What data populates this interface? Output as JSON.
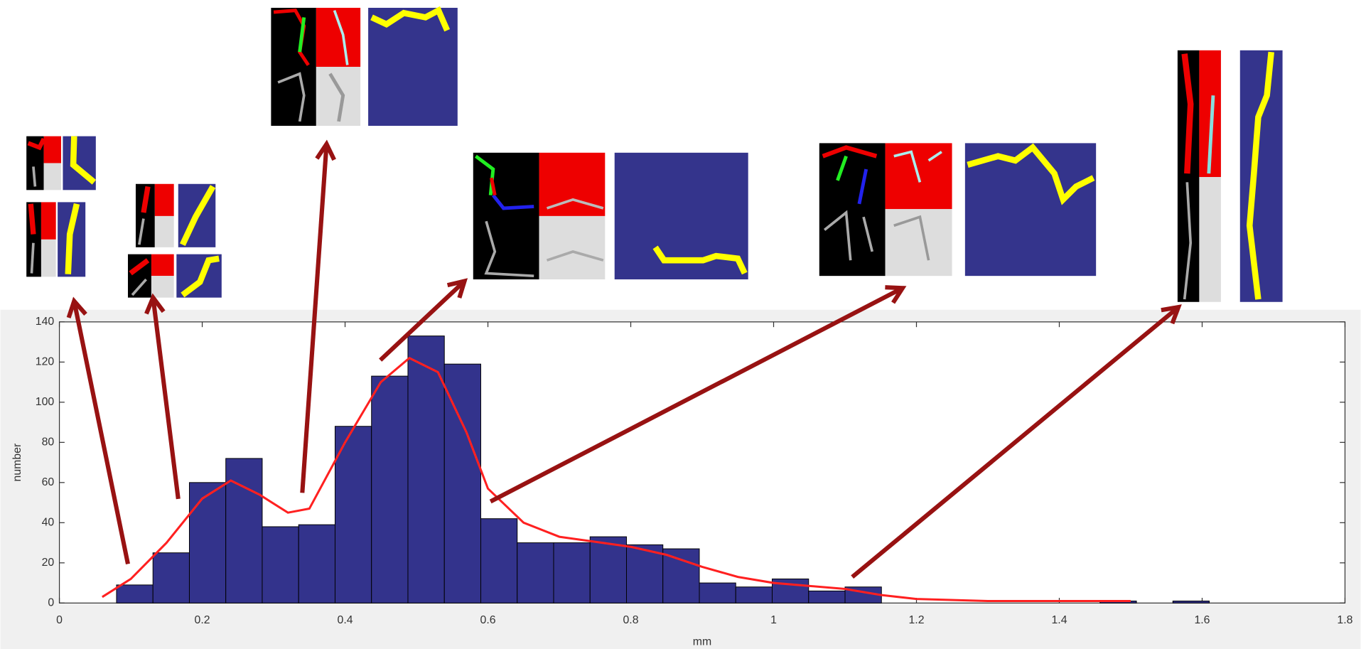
{
  "chart_data": {
    "type": "histogram",
    "xlabel": "mm",
    "ylabel": "number",
    "color": "#33338c",
    "bins": [
      0.08,
      0.131,
      0.182,
      0.233,
      0.284,
      0.335,
      0.386,
      0.437,
      0.488,
      0.539,
      0.59,
      0.641,
      0.692,
      0.743,
      0.794,
      0.845,
      0.896,
      0.947,
      0.998,
      1.049,
      1.1,
      1.151,
      1.202,
      1.253,
      1.304,
      1.355,
      1.406,
      1.457,
      1.508,
      1.559,
      1.61
    ],
    "counts": [
      9,
      25,
      60,
      72,
      38,
      39,
      88,
      113,
      133,
      119,
      42,
      30,
      30,
      33,
      29,
      27,
      10,
      8,
      12,
      6,
      8,
      0,
      0,
      0,
      0,
      0,
      0,
      1,
      0,
      1
    ],
    "density_curve": {
      "color": "#ff2020",
      "x": [
        0.06,
        0.1,
        0.15,
        0.2,
        0.24,
        0.28,
        0.32,
        0.35,
        0.4,
        0.45,
        0.49,
        0.53,
        0.57,
        0.6,
        0.65,
        0.7,
        0.8,
        0.85,
        0.9,
        0.95,
        1.0,
        1.1,
        1.15,
        1.2,
        1.3,
        1.4,
        1.5
      ],
      "values": [
        3,
        12,
        30,
        52,
        61,
        54,
        45,
        47,
        80,
        110,
        122,
        115,
        85,
        57,
        40,
        33,
        28,
        24,
        18,
        13,
        10,
        7,
        4,
        2,
        1,
        1,
        1
      ]
    },
    "xlim": [
      0,
      1.8
    ],
    "ylim": [
      0,
      140
    ],
    "xticks": [
      0,
      0.2,
      0.4,
      0.6,
      0.8,
      1,
      1.2,
      1.4,
      1.6,
      1.8
    ],
    "yticks": [
      0,
      20,
      40,
      60,
      80,
      100,
      120,
      140
    ]
  }
}
